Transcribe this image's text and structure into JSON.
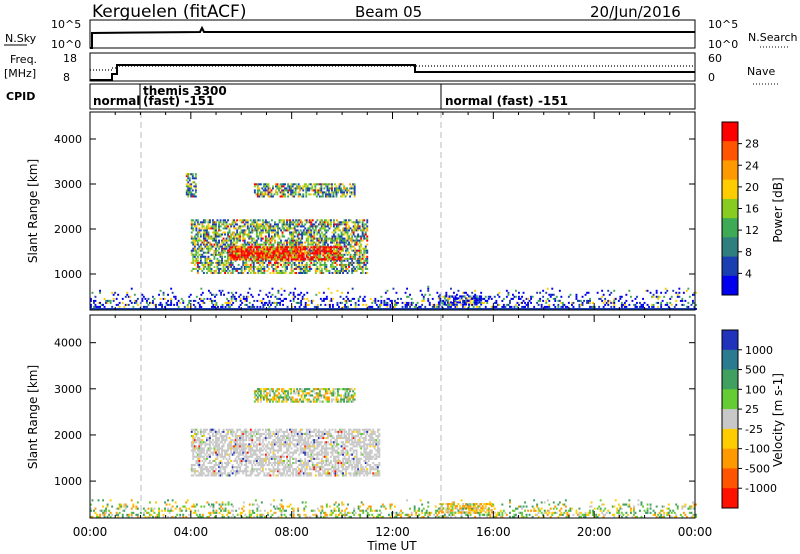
{
  "header": {
    "station": "Kerguelen (fitACF)",
    "beam": "Beam 05",
    "date": "20/Jun/2016"
  },
  "nsky_panel": {
    "label": "N.Sky",
    "left_ticks": [
      "10^5",
      "10^0"
    ],
    "right_ticks": [
      "10^5",
      "10^0"
    ],
    "right_label": "N.Search"
  },
  "freq_panel": {
    "label_line1": "Freq.",
    "label_line2": "[MHz]",
    "left_ticks": [
      "18",
      "8"
    ],
    "right_ticks": [
      "60",
      "0"
    ],
    "right_label": "Nave"
  },
  "cpid_panel": {
    "label": "CPID",
    "segments": [
      {
        "line1": "normal",
        "line2": ""
      },
      {
        "line1": "themis 3300",
        "line2": "(fast) -151"
      },
      {
        "line1": "normal (fast) -151",
        "line2": ""
      }
    ]
  },
  "x_axis": {
    "label": "Time UT",
    "ticks": [
      "00:00",
      "04:00",
      "08:00",
      "12:00",
      "16:00",
      "20:00",
      "00:00"
    ]
  },
  "colors": {
    "power_scale": [
      "#0000ee",
      "#1a3fb0",
      "#2f7f7f",
      "#3faa55",
      "#88cc22",
      "#ffcc00",
      "#ff9900",
      "#ff5500",
      "#ff0000"
    ],
    "velocity_scale": [
      "#2233bb",
      "#2a7a90",
      "#3fa060",
      "#66cc33",
      "#c8c8c8",
      "#ffcc00",
      "#ff9900",
      "#ff5500",
      "#ff1100"
    ]
  },
  "chart_data": [
    {
      "type": "heatmap",
      "title": "Power",
      "ylabel": "Slant Range [km]",
      "xlabel": "",
      "yticks": [
        "1000",
        "2000",
        "3000",
        "4000"
      ],
      "colorbar_label": "Power [dB]",
      "colorbar_ticks": [
        "4",
        "8",
        "12",
        "16",
        "20",
        "24",
        "28"
      ],
      "ylim": [
        200,
        4600
      ],
      "xlim_hours": [
        0,
        24
      ],
      "echo_regions": [
        {
          "t": [
            4.0,
            11.0
          ],
          "r": [
            1000,
            2200
          ],
          "level": "mixed"
        },
        {
          "t": [
            5.5,
            10.0
          ],
          "r": [
            1300,
            1600
          ],
          "level": "high"
        },
        {
          "t": [
            6.5,
            10.5
          ],
          "r": [
            2700,
            3000
          ],
          "level": "mixed"
        },
        {
          "t": [
            3.8,
            4.2
          ],
          "r": [
            2700,
            3200
          ],
          "level": "mixed"
        },
        {
          "t": [
            13.8,
            15.5
          ],
          "r": [
            300,
            500
          ],
          "level": "low"
        },
        {
          "t": [
            0,
            24
          ],
          "r": [
            200,
            700
          ],
          "level": "low"
        }
      ]
    },
    {
      "type": "heatmap",
      "title": "Velocity",
      "ylabel": "Slant Range [km]",
      "xlabel": "Time UT",
      "yticks": [
        "1000",
        "2000",
        "3000",
        "4000"
      ],
      "colorbar_label": "Velocity [m s-1]",
      "colorbar_ticks": [
        "1000",
        "500",
        "100",
        "25",
        "-25",
        "-100",
        "-500",
        "-1000"
      ],
      "ylim": [
        200,
        4600
      ],
      "xlim_hours": [
        0,
        24
      ],
      "echo_regions": [
        {
          "t": [
            4.0,
            11.5
          ],
          "r": [
            1100,
            2100
          ],
          "level": "near-zero"
        },
        {
          "t": [
            6.5,
            10.5
          ],
          "r": [
            2700,
            3000
          ],
          "level": "mixed"
        },
        {
          "t": [
            13.8,
            16.0
          ],
          "r": [
            300,
            500
          ],
          "level": "negative"
        },
        {
          "t": [
            0,
            24
          ],
          "r": [
            200,
            600
          ],
          "level": "mixed"
        }
      ]
    }
  ]
}
